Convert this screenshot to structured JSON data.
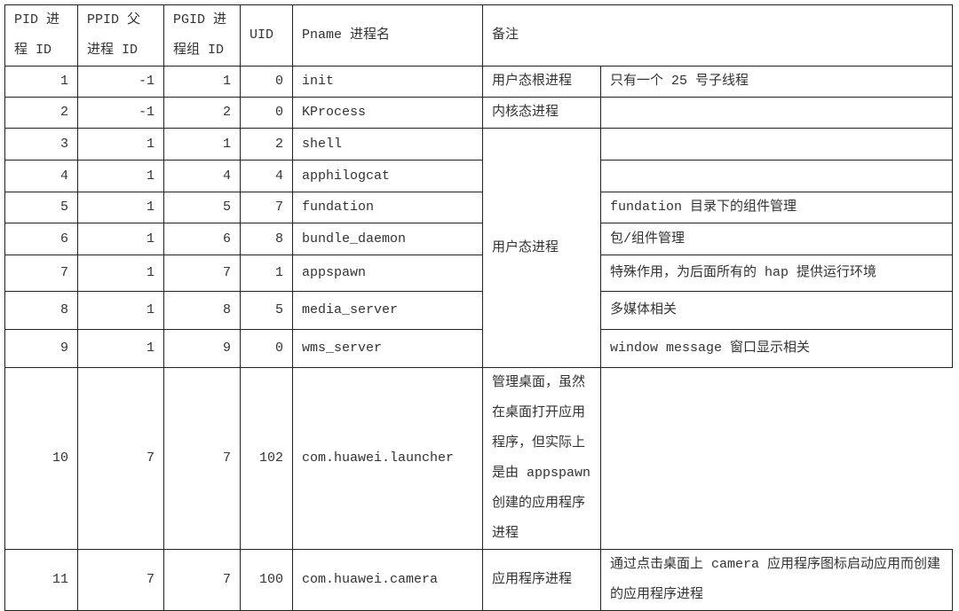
{
  "headers": {
    "pid": [
      "PID 进",
      "程 ID"
    ],
    "ppid": [
      "PPID 父",
      "进程 ID"
    ],
    "pgid": [
      "PGID 进",
      "程组 ID"
    ],
    "uid": "UID",
    "pname": "Pname 进程名",
    "remark": "备注"
  },
  "rows": [
    {
      "pid": "1",
      "ppid": "-1",
      "pgid": "1",
      "uid": "0",
      "pname": "init",
      "category": "用户态根进程",
      "note": "只有一个 25 号子线程"
    },
    {
      "pid": "2",
      "ppid": "-1",
      "pgid": "2",
      "uid": "0",
      "pname": "KProcess",
      "category": "内核态进程",
      "note": ""
    },
    {
      "pid": "3",
      "ppid": "1",
      "pgid": "1",
      "uid": "2",
      "pname": "shell",
      "category": "用户态进程",
      "note": ""
    },
    {
      "pid": "4",
      "ppid": "1",
      "pgid": "4",
      "uid": "4",
      "pname": "apphilogcat",
      "note": ""
    },
    {
      "pid": "5",
      "ppid": "1",
      "pgid": "5",
      "uid": "7",
      "pname": "fundation",
      "note": "fundation 目录下的组件管理"
    },
    {
      "pid": "6",
      "ppid": "1",
      "pgid": "6",
      "uid": "8",
      "pname": "bundle_daemon",
      "note": "包/组件管理"
    },
    {
      "pid": "7",
      "ppid": "1",
      "pgid": "7",
      "uid": "1",
      "pname": "appspawn",
      "note": "特殊作用，为后面所有的 hap 提供运行环境"
    },
    {
      "pid": "8",
      "ppid": "1",
      "pgid": "8",
      "uid": "5",
      "pname": "media_server",
      "note": "多媒体相关"
    },
    {
      "pid": "9",
      "ppid": "1",
      "pgid": "9",
      "uid": "0",
      "pname": "wms_server",
      "note": "window message 窗口显示相关"
    },
    {
      "pid": "10",
      "ppid": "7",
      "pgid": "7",
      "uid": "102",
      "pname": "com.huawei.launcher",
      "note": "管理桌面，虽然在桌面打开应用程序，但实际上是由 appspawn 创建的应用程序进程"
    },
    {
      "pid": "11",
      "ppid": "7",
      "pgid": "7",
      "uid": "100",
      "pname": "com.huawei.camera",
      "category": "应用程序进程",
      "note": "通过点击桌面上 camera 应用程序图标启动应用而创建的应用程序进程"
    }
  ]
}
